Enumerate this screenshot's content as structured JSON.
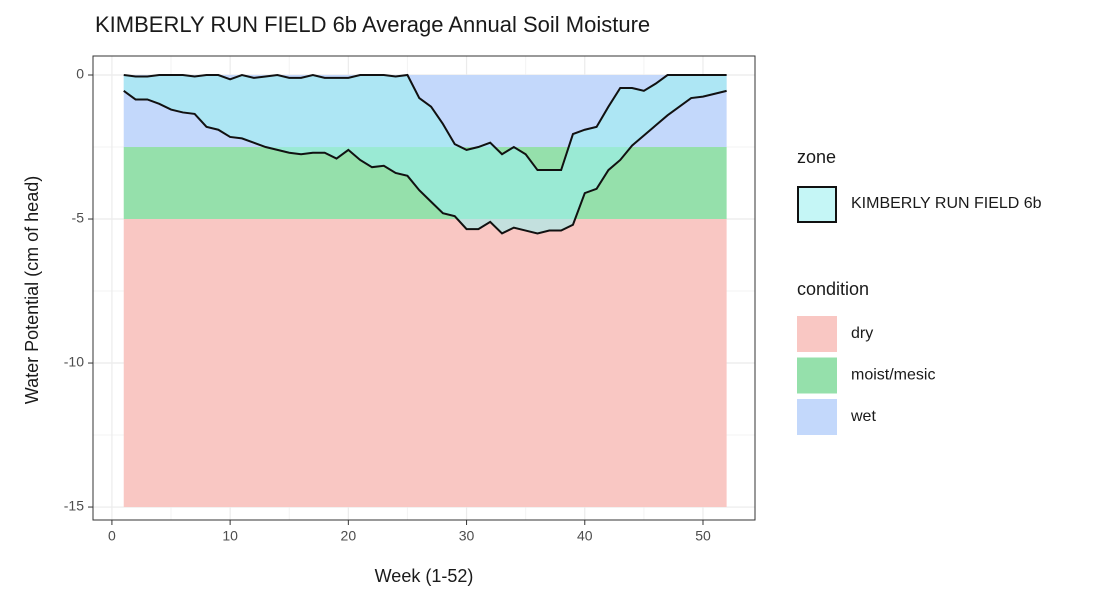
{
  "chart_data": {
    "type": "ribbon",
    "title": "KIMBERLY RUN FIELD 6b Average Annual Soil Moisture",
    "x_label": "Week (1-52)",
    "y_label": "Water Potential (cm of head)",
    "x": [
      1,
      2,
      3,
      4,
      5,
      6,
      7,
      8,
      9,
      10,
      11,
      12,
      13,
      14,
      15,
      16,
      17,
      18,
      19,
      20,
      21,
      22,
      23,
      24,
      25,
      26,
      27,
      28,
      29,
      30,
      31,
      32,
      33,
      34,
      35,
      36,
      37,
      38,
      39,
      40,
      41,
      42,
      43,
      44,
      45,
      46,
      47,
      48,
      49,
      50,
      51,
      52
    ],
    "series": [
      {
        "name": "KIMBERLY RUN FIELD 6b",
        "color": "#9ff0f0",
        "high": [
          0,
          -0.05,
          -0.05,
          0,
          0,
          0,
          -0.05,
          0,
          0,
          -0.15,
          0,
          -0.1,
          -0.05,
          0,
          -0.1,
          -0.1,
          0,
          -0.1,
          -0.1,
          -0.1,
          0,
          0,
          0,
          -0.05,
          0,
          -0.8,
          -1.1,
          -1.7,
          -2.4,
          -2.6,
          -2.5,
          -2.35,
          -2.75,
          -2.5,
          -2.75,
          -3.3,
          -3.3,
          -3.3,
          -2.05,
          -1.9,
          -1.8,
          -1.1,
          -0.45,
          -0.45,
          -0.55,
          -0.3,
          0,
          0,
          0,
          0,
          0,
          0
        ],
        "low": [
          -0.55,
          -0.85,
          -0.85,
          -1.0,
          -1.2,
          -1.3,
          -1.35,
          -1.8,
          -1.9,
          -2.15,
          -2.2,
          -2.35,
          -2.5,
          -2.6,
          -2.7,
          -2.75,
          -2.7,
          -2.7,
          -2.9,
          -2.6,
          -2.95,
          -3.2,
          -3.15,
          -3.4,
          -3.5,
          -4.0,
          -4.4,
          -4.8,
          -4.9,
          -5.35,
          -5.35,
          -5.1,
          -5.5,
          -5.3,
          -5.4,
          -5.5,
          -5.4,
          -5.4,
          -5.2,
          -4.1,
          -3.95,
          -3.3,
          -2.95,
          -2.45,
          -2.1,
          -1.75,
          -1.4,
          -1.1,
          -0.8,
          -0.75,
          -0.65,
          -0.55
        ]
      }
    ],
    "zone_legend_title": "zone",
    "condition_legend_title": "condition",
    "conditions": [
      {
        "name": "dry",
        "color": "#f9c7c3",
        "range": [
          -15,
          -5
        ]
      },
      {
        "name": "moist/mesic",
        "color": "#95e0ab",
        "range": [
          -5,
          -2.5
        ]
      },
      {
        "name": "wet",
        "color": "#c3d8fb",
        "range": [
          -2.5,
          0
        ]
      }
    ],
    "condition_x_range": [
      1,
      52
    ],
    "xlim": [
      -1.6,
      54.4
    ],
    "ylim": [
      -15.45,
      0.66
    ],
    "xticks": [
      0,
      10,
      20,
      30,
      40,
      50
    ],
    "yticks": [
      0,
      -5,
      -10,
      -15
    ],
    "grid": true
  }
}
